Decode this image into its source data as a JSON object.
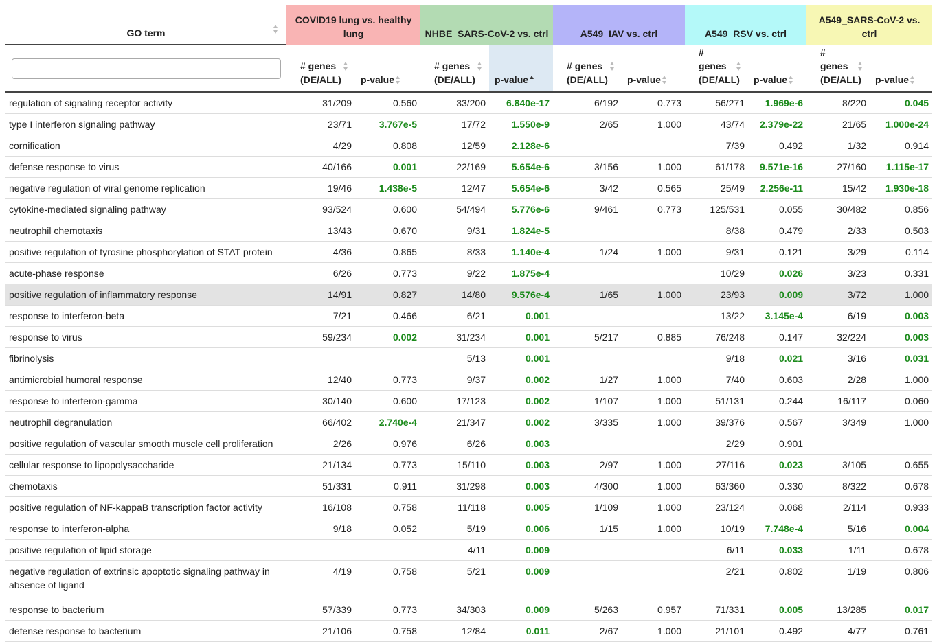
{
  "table": {
    "goterm_header": "GO term",
    "filter_value": "",
    "groups": [
      {
        "label": "COVID19 lung vs. healthy lung",
        "color": "#f9b4b4"
      },
      {
        "label": "NHBE_SARS-CoV-2 vs. ctrl",
        "color": "#b3dbb3"
      },
      {
        "label": "A549_IAV vs. ctrl",
        "color": "#b4b4f9"
      },
      {
        "label": "A549_RSV vs. ctrl",
        "color": "#b4f9f9"
      },
      {
        "label": "A549_SARS-CoV-2 vs. ctrl",
        "color": "#f7f7b4"
      }
    ],
    "col_genes": "# genes (DE/ALL)",
    "col_pvalue": "p-value",
    "sorted_column_highlight": "#dde9f3",
    "significant_color": "#1b8a1b",
    "rows": [
      {
        "term": "regulation of signaling receptor activity",
        "cells": [
          [
            "31/209",
            "0.560",
            false
          ],
          [
            "33/200",
            "6.840e-17",
            true
          ],
          [
            "6/192",
            "0.773",
            false
          ],
          [
            "56/271",
            "1.969e-6",
            true
          ],
          [
            "8/220",
            "0.045",
            true
          ]
        ]
      },
      {
        "term": "type I interferon signaling pathway",
        "cells": [
          [
            "23/71",
            "3.767e-5",
            true
          ],
          [
            "17/72",
            "1.550e-9",
            true
          ],
          [
            "2/65",
            "1.000",
            false
          ],
          [
            "43/74",
            "2.379e-22",
            true
          ],
          [
            "21/65",
            "1.000e-24",
            true
          ]
        ]
      },
      {
        "term": "cornification",
        "cells": [
          [
            "4/29",
            "0.808",
            false
          ],
          [
            "12/59",
            "2.128e-6",
            true
          ],
          [
            "",
            "",
            false
          ],
          [
            "7/39",
            "0.492",
            false
          ],
          [
            "1/32",
            "0.914",
            false
          ]
        ]
      },
      {
        "term": "defense response to virus",
        "cells": [
          [
            "40/166",
            "0.001",
            true
          ],
          [
            "22/169",
            "5.654e-6",
            true
          ],
          [
            "3/156",
            "1.000",
            false
          ],
          [
            "61/178",
            "9.571e-16",
            true
          ],
          [
            "27/160",
            "1.115e-17",
            true
          ]
        ]
      },
      {
        "term": "negative regulation of viral genome replication",
        "cells": [
          [
            "19/46",
            "1.438e-5",
            true
          ],
          [
            "12/47",
            "5.654e-6",
            true
          ],
          [
            "3/42",
            "0.565",
            false
          ],
          [
            "25/49",
            "2.256e-11",
            true
          ],
          [
            "15/42",
            "1.930e-18",
            true
          ]
        ]
      },
      {
        "term": "cytokine-mediated signaling pathway",
        "cells": [
          [
            "93/524",
            "0.600",
            false
          ],
          [
            "54/494",
            "5.776e-6",
            true
          ],
          [
            "9/461",
            "0.773",
            false
          ],
          [
            "125/531",
            "0.055",
            false
          ],
          [
            "30/482",
            "0.856",
            false
          ]
        ]
      },
      {
        "term": "neutrophil chemotaxis",
        "cells": [
          [
            "13/43",
            "0.670",
            false
          ],
          [
            "9/31",
            "1.824e-5",
            true
          ],
          [
            "",
            "",
            false
          ],
          [
            "8/38",
            "0.479",
            false
          ],
          [
            "2/33",
            "0.503",
            false
          ]
        ]
      },
      {
        "term": "positive regulation of tyrosine phosphorylation of STAT protein",
        "cells": [
          [
            "4/36",
            "0.865",
            false
          ],
          [
            "8/33",
            "1.140e-4",
            true
          ],
          [
            "1/24",
            "1.000",
            false
          ],
          [
            "9/31",
            "0.121",
            false
          ],
          [
            "3/29",
            "0.114",
            false
          ]
        ]
      },
      {
        "term": "acute-phase response",
        "cells": [
          [
            "6/26",
            "0.773",
            false
          ],
          [
            "9/22",
            "1.875e-4",
            true
          ],
          [
            "",
            "",
            false
          ],
          [
            "10/29",
            "0.026",
            true
          ],
          [
            "3/23",
            "0.331",
            false
          ]
        ]
      },
      {
        "term": "positive regulation of inflammatory response",
        "highlight": true,
        "cells": [
          [
            "14/91",
            "0.827",
            false
          ],
          [
            "14/80",
            "9.576e-4",
            true
          ],
          [
            "1/65",
            "1.000",
            false
          ],
          [
            "23/93",
            "0.009",
            true
          ],
          [
            "3/72",
            "1.000",
            false
          ]
        ]
      },
      {
        "term": "response to interferon-beta",
        "cells": [
          [
            "7/21",
            "0.466",
            false
          ],
          [
            "6/21",
            "0.001",
            true
          ],
          [
            "",
            "",
            false
          ],
          [
            "13/22",
            "3.145e-4",
            true
          ],
          [
            "6/19",
            "0.003",
            true
          ]
        ]
      },
      {
        "term": "response to virus",
        "cells": [
          [
            "59/234",
            "0.002",
            true
          ],
          [
            "31/234",
            "0.001",
            true
          ],
          [
            "5/217",
            "0.885",
            false
          ],
          [
            "76/248",
            "0.147",
            false
          ],
          [
            "32/224",
            "0.003",
            true
          ]
        ]
      },
      {
        "term": "fibrinolysis",
        "cells": [
          [
            "",
            "",
            false
          ],
          [
            "5/13",
            "0.001",
            true
          ],
          [
            "",
            "",
            false
          ],
          [
            "9/18",
            "0.021",
            true
          ],
          [
            "3/16",
            "0.031",
            true
          ]
        ]
      },
      {
        "term": "antimicrobial humoral response",
        "cells": [
          [
            "12/40",
            "0.773",
            false
          ],
          [
            "9/37",
            "0.002",
            true
          ],
          [
            "1/27",
            "1.000",
            false
          ],
          [
            "7/40",
            "0.603",
            false
          ],
          [
            "2/28",
            "1.000",
            false
          ]
        ]
      },
      {
        "term": "response to interferon-gamma",
        "cells": [
          [
            "30/140",
            "0.600",
            false
          ],
          [
            "17/123",
            "0.002",
            true
          ],
          [
            "1/107",
            "1.000",
            false
          ],
          [
            "51/131",
            "0.244",
            false
          ],
          [
            "16/117",
            "0.060",
            false
          ]
        ]
      },
      {
        "term": "neutrophil degranulation",
        "cells": [
          [
            "66/402",
            "2.740e-4",
            true
          ],
          [
            "21/347",
            "0.002",
            true
          ],
          [
            "3/335",
            "1.000",
            false
          ],
          [
            "39/376",
            "0.567",
            false
          ],
          [
            "3/349",
            "1.000",
            false
          ]
        ]
      },
      {
        "term": "positive regulation of vascular smooth muscle cell proliferation",
        "cells": [
          [
            "2/26",
            "0.976",
            false
          ],
          [
            "6/26",
            "0.003",
            true
          ],
          [
            "",
            "",
            false
          ],
          [
            "2/29",
            "0.901",
            false
          ],
          [
            "",
            "",
            false
          ]
        ]
      },
      {
        "term": "cellular response to lipopolysaccharide",
        "cells": [
          [
            "21/134",
            "0.773",
            false
          ],
          [
            "15/110",
            "0.003",
            true
          ],
          [
            "2/97",
            "1.000",
            false
          ],
          [
            "27/116",
            "0.023",
            true
          ],
          [
            "3/105",
            "0.655",
            false
          ]
        ]
      },
      {
        "term": "chemotaxis",
        "cells": [
          [
            "51/331",
            "0.911",
            false
          ],
          [
            "31/298",
            "0.003",
            true
          ],
          [
            "4/300",
            "1.000",
            false
          ],
          [
            "63/360",
            "0.330",
            false
          ],
          [
            "8/322",
            "0.678",
            false
          ]
        ]
      },
      {
        "term": "positive regulation of NF-kappaB transcription factor activity",
        "cells": [
          [
            "16/108",
            "0.758",
            false
          ],
          [
            "11/118",
            "0.005",
            true
          ],
          [
            "1/109",
            "1.000",
            false
          ],
          [
            "23/124",
            "0.068",
            false
          ],
          [
            "2/114",
            "0.933",
            false
          ]
        ]
      },
      {
        "term": "response to interferon-alpha",
        "cells": [
          [
            "9/18",
            "0.052",
            false
          ],
          [
            "5/19",
            "0.006",
            true
          ],
          [
            "1/15",
            "1.000",
            false
          ],
          [
            "10/19",
            "7.748e-4",
            true
          ],
          [
            "5/16",
            "0.004",
            true
          ]
        ]
      },
      {
        "term": "positive regulation of lipid storage",
        "cells": [
          [
            "",
            "",
            false
          ],
          [
            "4/11",
            "0.009",
            true
          ],
          [
            "",
            "",
            false
          ],
          [
            "6/11",
            "0.033",
            true
          ],
          [
            "1/11",
            "0.678",
            false
          ]
        ]
      },
      {
        "term": "negative regulation of extrinsic apoptotic signaling pathway in absence of ligand",
        "tall": true,
        "cells": [
          [
            "4/19",
            "0.758",
            false
          ],
          [
            "5/21",
            "0.009",
            true
          ],
          [
            "",
            "",
            false
          ],
          [
            "2/21",
            "0.802",
            false
          ],
          [
            "1/19",
            "0.806",
            false
          ]
        ]
      },
      {
        "term": "response to bacterium",
        "cells": [
          [
            "57/339",
            "0.773",
            false
          ],
          [
            "34/303",
            "0.009",
            true
          ],
          [
            "5/263",
            "0.957",
            false
          ],
          [
            "71/331",
            "0.005",
            true
          ],
          [
            "13/285",
            "0.017",
            true
          ]
        ]
      },
      {
        "term": "defense response to bacterium",
        "cells": [
          [
            "21/106",
            "0.758",
            false
          ],
          [
            "12/84",
            "0.011",
            true
          ],
          [
            "2/67",
            "1.000",
            false
          ],
          [
            "21/101",
            "0.492",
            false
          ],
          [
            "4/77",
            "0.761",
            false
          ]
        ]
      }
    ]
  }
}
